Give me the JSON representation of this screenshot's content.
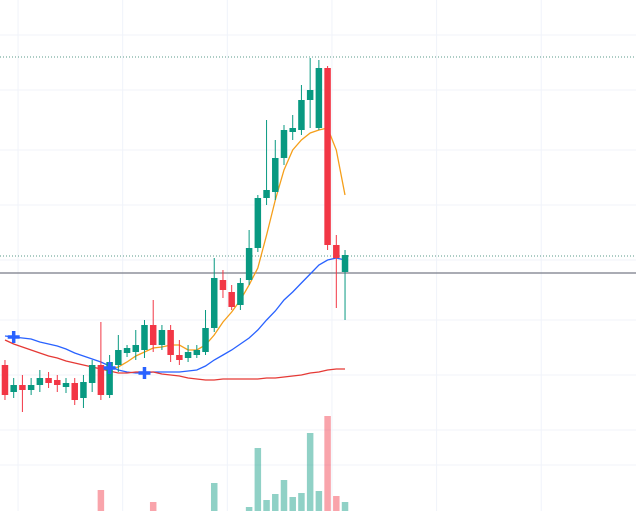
{
  "chart_data": {
    "type": "candlestick",
    "x": [
      0,
      1,
      2,
      3,
      4,
      5,
      6,
      7,
      8,
      9,
      10,
      11,
      12,
      13,
      14,
      15,
      16,
      17,
      18,
      19,
      20,
      21,
      22,
      23,
      24,
      25,
      26,
      27,
      28,
      29,
      30,
      31,
      32,
      33,
      34,
      35,
      36,
      37,
      38,
      39
    ],
    "open": [
      146,
      119,
      126,
      121,
      126,
      133,
      131,
      124,
      128,
      113,
      128,
      146,
      116,
      146,
      158,
      159,
      161,
      186,
      166,
      181,
      156,
      153,
      156,
      159,
      183,
      231,
      219,
      206,
      231,
      263,
      313,
      319,
      353,
      379,
      381,
      411,
      383,
      443,
      266,
      239
    ],
    "close": [
      116,
      126,
      121,
      126,
      133,
      128,
      126,
      128,
      111,
      129,
      146,
      116,
      149,
      161,
      163,
      166,
      186,
      166,
      181,
      156,
      151,
      159,
      161,
      183,
      233,
      221,
      204,
      228,
      263,
      313,
      321,
      353,
      381,
      383,
      411,
      421,
      443,
      266,
      253,
      256
    ],
    "high": [
      151,
      133,
      136,
      133,
      141,
      139,
      136,
      133,
      133,
      136,
      151,
      189,
      156,
      176,
      166,
      181,
      191,
      211,
      186,
      186,
      171,
      166,
      166,
      201,
      253,
      241,
      226,
      233,
      281,
      316,
      391,
      371,
      386,
      396,
      426,
      453,
      451,
      445,
      276,
      261
    ],
    "low": [
      111,
      113,
      99,
      116,
      119,
      123,
      119,
      118,
      106,
      103,
      119,
      111,
      113,
      139,
      154,
      151,
      153,
      159,
      161,
      149,
      146,
      149,
      153,
      156,
      179,
      213,
      201,
      201,
      226,
      259,
      306,
      311,
      346,
      371,
      376,
      383,
      381,
      261,
      203,
      191
    ],
    "up_color": "#089981",
    "down_color": "#f23645",
    "volume": {
      "axis": "y2",
      "values": [
        0,
        0,
        0,
        0,
        0,
        0,
        0,
        0,
        0,
        0,
        0,
        21,
        0,
        0,
        0,
        0,
        0,
        9,
        0,
        0,
        0,
        0,
        0,
        0,
        28,
        0,
        0,
        0,
        4,
        63,
        11,
        17,
        31,
        14,
        18,
        78,
        20,
        95,
        15,
        9
      ]
    },
    "series": [
      {
        "color": "#f59f1a",
        "values": [
          null,
          null,
          null,
          null,
          null,
          null,
          null,
          null,
          null,
          null,
          null,
          141,
          142,
          144,
          149,
          155,
          159,
          163,
          164,
          166,
          166,
          161,
          161,
          166,
          176,
          189,
          199,
          211,
          226,
          243,
          276,
          311,
          341,
          361,
          371,
          378,
          381,
          383,
          361,
          316
        ]
      },
      {
        "color": "#2962ff",
        "values": [
          175,
          174,
          173,
          172,
          169,
          167,
          165,
          162,
          158,
          155,
          152,
          149,
          145,
          141,
          139,
          138,
          138,
          139,
          139,
          139,
          139,
          140,
          141,
          145,
          151,
          156,
          161,
          167,
          173,
          181,
          191,
          200,
          211,
          219,
          228,
          237,
          246,
          251,
          253,
          251
        ]
      },
      {
        "color": "#e53935",
        "values": [
          171,
          167,
          164,
          161,
          158,
          155,
          153,
          150,
          148,
          146,
          144,
          142,
          140,
          138,
          138,
          139,
          139,
          139,
          137,
          136,
          135,
          133,
          132,
          131,
          131,
          132,
          132,
          132,
          132,
          132,
          133,
          133,
          134,
          135,
          136,
          138,
          139,
          141,
          142,
          142
        ]
      }
    ],
    "hlines": [
      {
        "value": 454,
        "style": "dotted",
        "color": "#5a9a8a"
      },
      {
        "value": 255,
        "style": "dotted",
        "color": "#5a9a8a"
      },
      {
        "value": 238,
        "style": "solid",
        "color": "#787b86"
      }
    ],
    "markers": [
      {
        "x": 1,
        "value": 174,
        "color": "#2962ff"
      },
      {
        "x": 12,
        "value": 143,
        "color": "#2962ff"
      },
      {
        "x": 16,
        "value": 138,
        "color": "#2962ff"
      }
    ],
    "xlim": [
      -0.57,
      72.37
    ],
    "ylim": [
      0,
      511
    ],
    "y2lim": [
      0,
      511
    ],
    "xticks": [
      1.5,
      13.5,
      25.5,
      37.5,
      49.5,
      61.5
    ],
    "yticks": [
      46,
      81,
      136,
      191,
      251,
      306,
      361,
      421,
      476
    ],
    "grid": true
  }
}
